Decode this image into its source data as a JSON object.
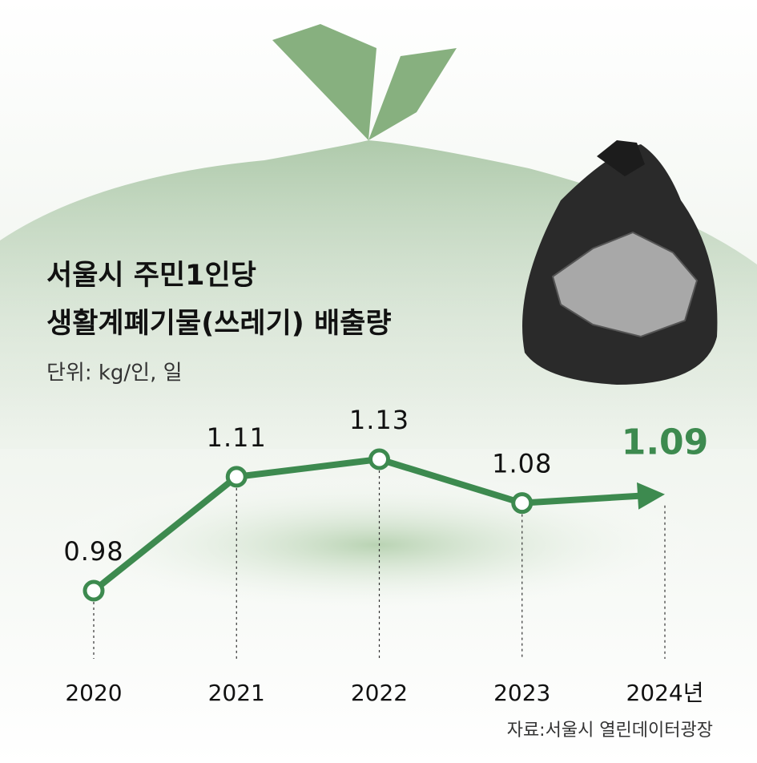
{
  "chart_data": {
    "type": "line",
    "title": [
      "서울시 주민1인당",
      "생활계폐기물(쓰레기) 배출량"
    ],
    "subtitle": "단위: kg/인, 일",
    "categories": [
      "2020",
      "2021",
      "2022",
      "2023",
      "2024년"
    ],
    "series": [
      {
        "color": "#3d8a4f",
        "values": [
          0.98,
          1.11,
          1.13,
          1.08,
          1.09
        ]
      }
    ],
    "highlight_color": "#3d8a4f",
    "source": "자료:서울시 열린데이터광장"
  }
}
